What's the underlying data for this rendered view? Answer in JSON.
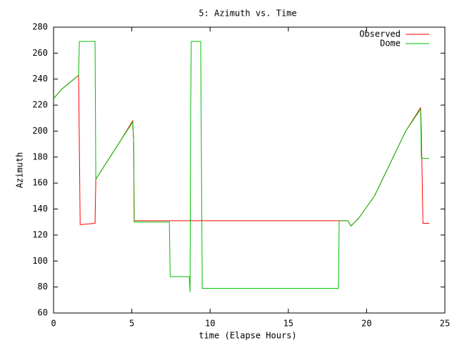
{
  "chart_data": {
    "type": "line",
    "title": "5: Azimuth vs. Time",
    "x_label": "time (Elapse Hours)",
    "y_label": "Azimuth",
    "xlim": [
      0,
      25
    ],
    "xticks": [
      0,
      5,
      10,
      15,
      20,
      25
    ],
    "ylim": [
      60,
      280
    ],
    "yticks": [
      60,
      80,
      100,
      120,
      140,
      160,
      180,
      200,
      220,
      240,
      260,
      280
    ],
    "legend": "top right",
    "series": [
      {
        "name": "Observed",
        "color": "#ff0000",
        "x": [
          0,
          0.5,
          1.0,
          1.6,
          1.65,
          1.7,
          2.65,
          2.7,
          3.5,
          4.3,
          5.06,
          5.12,
          5.15,
          18.8,
          19.0,
          19.5,
          20.5,
          21.5,
          22.5,
          23.45,
          23.5,
          23.6,
          24.0
        ],
        "values": [
          225,
          232,
          237,
          243,
          186,
          128,
          129,
          163,
          178,
          193,
          208,
          190,
          131,
          131,
          127,
          133,
          150,
          175,
          200,
          218,
          198,
          129,
          129
        ]
      },
      {
        "name": "Dome",
        "color": "#00c000",
        "x": [
          0,
          0.5,
          1.0,
          1.6,
          1.65,
          2.65,
          2.7,
          3.5,
          4.3,
          5.06,
          5.12,
          5.15,
          7.4,
          7.45,
          8.67,
          8.72,
          8.76,
          8.8,
          9.4,
          9.5,
          18.2,
          18.25,
          18.8,
          19.0,
          19.5,
          20.5,
          21.5,
          22.5,
          23.45,
          23.5,
          24.0
        ],
        "values": [
          225,
          232,
          237,
          243,
          269,
          269,
          163,
          178,
          193,
          207,
          190,
          130,
          130,
          88,
          88,
          76,
          220,
          269,
          269,
          79,
          79,
          131,
          131,
          127,
          133,
          150,
          175,
          200,
          217,
          179,
          179
        ]
      }
    ]
  }
}
